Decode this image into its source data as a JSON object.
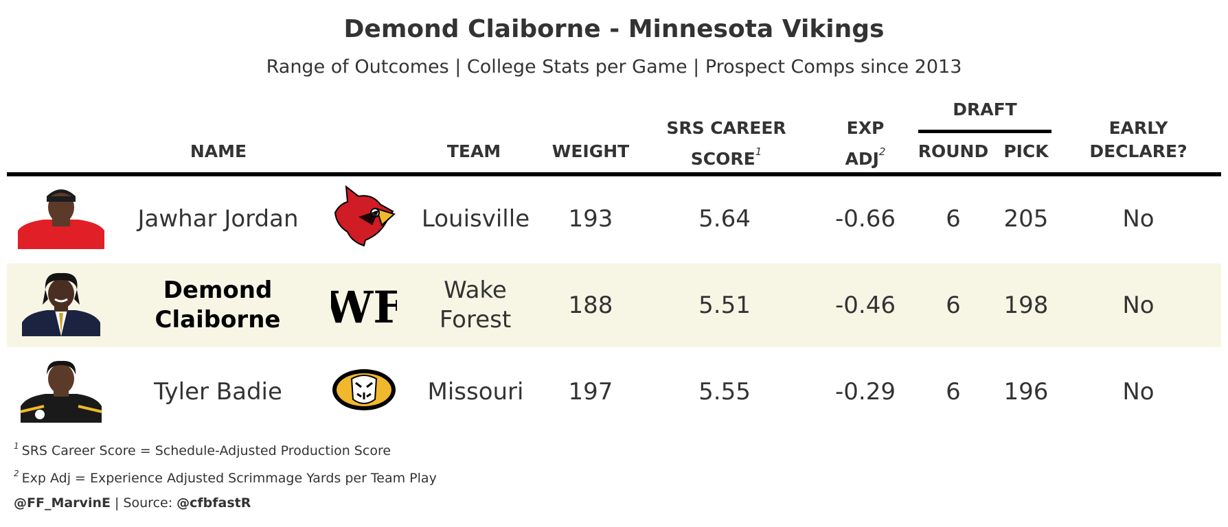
{
  "title": "Demond Claiborne - Minnesota Vikings",
  "subtitle": "Range of Outcomes | College Stats per Game | Prospect Comps since 2013",
  "headers": {
    "name": "NAME",
    "team": "TEAM",
    "weight": "WEIGHT",
    "srs_line1": "SRS CAREER",
    "srs_line2": "SCORE",
    "srs_note": "1",
    "exp_line1": "EXP",
    "exp_line2": "ADJ",
    "exp_note": "2",
    "draft": "DRAFT",
    "round": "ROUND",
    "pick": "PICK",
    "early_line1": "EARLY",
    "early_line2": "DECLARE?"
  },
  "chart_data": {
    "type": "table",
    "columns": [
      "NAME",
      "TEAM",
      "WEIGHT",
      "SRS CAREER SCORE",
      "EXP ADJ",
      "DRAFT ROUND",
      "DRAFT PICK",
      "EARLY DECLARE?"
    ],
    "rows": [
      {
        "name": "Jawhar Jordan",
        "team": "Louisville",
        "weight": "193",
        "srs": "5.64",
        "exp_adj": "-0.66",
        "round": "6",
        "pick": "205",
        "early_declare": "No",
        "highlight": false,
        "logo": "louisville-cardinal-logo"
      },
      {
        "name": "Demond Claiborne",
        "team": "Wake Forest",
        "weight": "188",
        "srs": "5.51",
        "exp_adj": "-0.46",
        "round": "6",
        "pick": "198",
        "early_declare": "No",
        "highlight": true,
        "logo": "wake-forest-wf-logo"
      },
      {
        "name": "Tyler Badie",
        "team": "Missouri",
        "weight": "197",
        "srs": "5.55",
        "exp_adj": "-0.29",
        "round": "6",
        "pick": "196",
        "early_declare": "No",
        "highlight": false,
        "logo": "missouri-tiger-logo"
      }
    ]
  },
  "footnotes": {
    "fn1_mark": "1",
    "fn1_text": "SRS Career Score = Schedule-Adjusted Production Score",
    "fn2_mark": "2",
    "fn2_text": "Exp Adj = Experience Adjusted Scrimmage Yards per Team Play"
  },
  "credit": {
    "author": "@FF_MarvinE",
    "separator": " | Source: ",
    "source": "@cfbfastR"
  },
  "colors": {
    "highlight_row": "#f7f6e5",
    "text": "#333333",
    "louisville_red": "#d01c24",
    "missouri_gold": "#f1b82d"
  }
}
